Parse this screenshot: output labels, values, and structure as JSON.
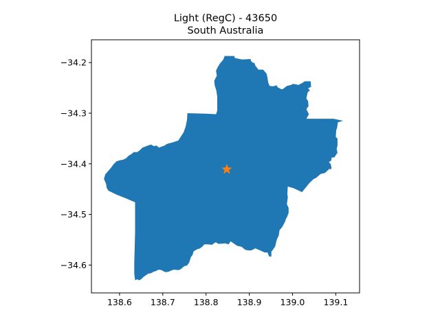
{
  "title": {
    "line1": "Light (RegC) - 43650",
    "line2": "South Australia"
  },
  "colors": {
    "region_fill": "#1f77b4",
    "marker": "#ff7f0e",
    "axis": "#000000",
    "background": "#ffffff"
  },
  "chart_data": {
    "type": "map",
    "title": "Light (RegC) - 43650\nSouth Australia",
    "xlabel": "",
    "ylabel": "",
    "xlim": [
      138.535,
      139.155
    ],
    "ylim": [
      -34.655,
      -34.155
    ],
    "grid": false,
    "x_ticks": [
      138.6,
      138.7,
      138.8,
      138.9,
      139.0,
      139.1
    ],
    "x_tick_labels": [
      "138.6",
      "138.7",
      "138.8",
      "138.9",
      "139.0",
      "139.1"
    ],
    "y_ticks": [
      -34.2,
      -34.3,
      -34.4,
      -34.5,
      -34.6
    ],
    "y_tick_labels": [
      "−34.2",
      "−34.3",
      "−34.4",
      "−34.5",
      "−34.6"
    ],
    "region": {
      "name": "Light (RegC)",
      "polygon": [
        [
          138.843,
          -34.187
        ],
        [
          138.865,
          -34.187
        ],
        [
          138.867,
          -34.191
        ],
        [
          138.884,
          -34.194
        ],
        [
          138.903,
          -34.193
        ],
        [
          138.904,
          -34.197
        ],
        [
          138.908,
          -34.2
        ],
        [
          138.912,
          -34.201
        ],
        [
          138.914,
          -34.206
        ],
        [
          138.921,
          -34.214
        ],
        [
          138.932,
          -34.214
        ],
        [
          138.937,
          -34.219
        ],
        [
          138.94,
          -34.222
        ],
        [
          138.942,
          -34.23
        ],
        [
          138.944,
          -34.24
        ],
        [
          138.947,
          -34.246
        ],
        [
          138.955,
          -34.247
        ],
        [
          138.963,
          -34.245
        ],
        [
          138.966,
          -34.249
        ],
        [
          138.975,
          -34.253
        ],
        [
          138.978,
          -34.252
        ],
        [
          138.987,
          -34.246
        ],
        [
          138.997,
          -34.244
        ],
        [
          139.001,
          -34.242
        ],
        [
          139.014,
          -34.244
        ],
        [
          139.023,
          -34.24
        ],
        [
          139.028,
          -34.237
        ],
        [
          139.042,
          -34.237
        ],
        [
          139.043,
          -34.248
        ],
        [
          139.036,
          -34.251
        ],
        [
          139.04,
          -34.255
        ],
        [
          139.035,
          -34.259
        ],
        [
          139.032,
          -34.271
        ],
        [
          139.036,
          -34.276
        ],
        [
          139.037,
          -34.286
        ],
        [
          139.032,
          -34.292
        ],
        [
          139.038,
          -34.302
        ],
        [
          139.032,
          -34.311
        ],
        [
          139.095,
          -34.311
        ],
        [
          139.117,
          -34.315
        ],
        [
          139.105,
          -34.318
        ],
        [
          139.103,
          -34.329
        ],
        [
          139.101,
          -34.334
        ],
        [
          139.1,
          -34.347
        ],
        [
          139.104,
          -34.35
        ],
        [
          139.104,
          -34.364
        ],
        [
          139.102,
          -34.371
        ],
        [
          139.104,
          -34.378
        ],
        [
          139.097,
          -34.387
        ],
        [
          139.09,
          -34.388
        ],
        [
          139.09,
          -34.393
        ],
        [
          139.084,
          -34.397
        ],
        [
          139.088,
          -34.4
        ],
        [
          139.09,
          -34.407
        ],
        [
          139.089,
          -34.411
        ],
        [
          139.085,
          -34.41
        ],
        [
          139.075,
          -34.418
        ],
        [
          139.065,
          -34.42
        ],
        [
          139.054,
          -34.428
        ],
        [
          139.049,
          -34.43
        ],
        [
          139.039,
          -34.438
        ],
        [
          139.022,
          -34.456
        ],
        [
          139.002,
          -34.448
        ],
        [
          138.989,
          -34.445
        ],
        [
          138.988,
          -34.459
        ],
        [
          138.989,
          -34.466
        ],
        [
          138.987,
          -34.48
        ],
        [
          138.991,
          -34.487
        ],
        [
          138.991,
          -34.497
        ],
        [
          138.987,
          -34.506
        ],
        [
          138.985,
          -34.508
        ],
        [
          138.983,
          -34.514
        ],
        [
          138.981,
          -34.517
        ],
        [
          138.976,
          -34.525
        ],
        [
          138.97,
          -34.531
        ],
        [
          138.968,
          -34.542
        ],
        [
          138.965,
          -34.547
        ],
        [
          138.963,
          -34.552
        ],
        [
          138.96,
          -34.563
        ],
        [
          138.956,
          -34.568
        ],
        [
          138.953,
          -34.572
        ],
        [
          138.951,
          -34.573
        ],
        [
          138.951,
          -34.583
        ],
        [
          138.946,
          -34.583
        ],
        [
          138.942,
          -34.575
        ],
        [
          138.935,
          -34.575
        ],
        [
          138.925,
          -34.571
        ],
        [
          138.914,
          -34.567
        ],
        [
          138.905,
          -34.571
        ],
        [
          138.898,
          -34.571
        ],
        [
          138.891,
          -34.57
        ],
        [
          138.882,
          -34.564
        ],
        [
          138.872,
          -34.562
        ],
        [
          138.865,
          -34.558
        ],
        [
          138.857,
          -34.553
        ],
        [
          138.852,
          -34.559
        ],
        [
          138.845,
          -34.557
        ],
        [
          138.834,
          -34.558
        ],
        [
          138.828,
          -34.558
        ],
        [
          138.823,
          -34.555
        ],
        [
          138.82,
          -34.556
        ],
        [
          138.814,
          -34.56
        ],
        [
          138.804,
          -34.559
        ],
        [
          138.796,
          -34.559
        ],
        [
          138.792,
          -34.563
        ],
        [
          138.786,
          -34.567
        ],
        [
          138.779,
          -34.569
        ],
        [
          138.771,
          -34.573
        ],
        [
          138.769,
          -34.58
        ],
        [
          138.765,
          -34.584
        ],
        [
          138.761,
          -34.595
        ],
        [
          138.756,
          -34.601
        ],
        [
          138.75,
          -34.602
        ],
        [
          138.742,
          -34.608
        ],
        [
          138.737,
          -34.61
        ],
        [
          138.726,
          -34.609
        ],
        [
          138.719,
          -34.611
        ],
        [
          138.714,
          -34.613
        ],
        [
          138.707,
          -34.614
        ],
        [
          138.703,
          -34.613
        ],
        [
          138.697,
          -34.61
        ],
        [
          138.69,
          -34.609
        ],
        [
          138.684,
          -34.612
        ],
        [
          138.679,
          -34.613
        ],
        [
          138.673,
          -34.616
        ],
        [
          138.666,
          -34.617
        ],
        [
          138.661,
          -34.62
        ],
        [
          138.656,
          -34.623
        ],
        [
          138.65,
          -34.628
        ],
        [
          138.645,
          -34.63
        ],
        [
          138.641,
          -34.628
        ],
        [
          138.636,
          -34.63
        ],
        [
          138.634,
          -34.617
        ],
        [
          138.634,
          -34.594
        ],
        [
          138.635,
          -34.566
        ],
        [
          138.636,
          -34.535
        ],
        [
          138.636,
          -34.476
        ],
        [
          138.614,
          -34.468
        ],
        [
          138.593,
          -34.461
        ],
        [
          138.574,
          -34.453
        ],
        [
          138.57,
          -34.447
        ],
        [
          138.569,
          -34.44
        ],
        [
          138.564,
          -34.43
        ],
        [
          138.567,
          -34.421
        ],
        [
          138.573,
          -34.415
        ],
        [
          138.58,
          -34.408
        ],
        [
          138.586,
          -34.401
        ],
        [
          138.593,
          -34.395
        ],
        [
          138.601,
          -34.393
        ],
        [
          138.608,
          -34.392
        ],
        [
          138.615,
          -34.389
        ],
        [
          138.621,
          -34.384
        ],
        [
          138.627,
          -34.381
        ],
        [
          138.633,
          -34.377
        ],
        [
          138.641,
          -34.377
        ],
        [
          138.647,
          -34.373
        ],
        [
          138.653,
          -34.368
        ],
        [
          138.659,
          -34.366
        ],
        [
          138.665,
          -34.364
        ],
        [
          138.673,
          -34.362
        ],
        [
          138.679,
          -34.365
        ],
        [
          138.686,
          -34.364
        ],
        [
          138.691,
          -34.368
        ],
        [
          138.697,
          -34.366
        ],
        [
          138.704,
          -34.364
        ],
        [
          138.709,
          -34.361
        ],
        [
          138.716,
          -34.359
        ],
        [
          138.722,
          -34.358
        ],
        [
          138.729,
          -34.356
        ],
        [
          138.736,
          -34.354
        ],
        [
          138.741,
          -34.347
        ],
        [
          138.748,
          -34.338
        ],
        [
          138.753,
          -34.326
        ],
        [
          138.756,
          -34.313
        ],
        [
          138.757,
          -34.3
        ],
        [
          138.8,
          -34.301
        ],
        [
          138.823,
          -34.302
        ],
        [
          138.826,
          -34.295
        ],
        [
          138.826,
          -34.282
        ],
        [
          138.826,
          -34.268
        ],
        [
          138.824,
          -34.256
        ],
        [
          138.82,
          -34.245
        ],
        [
          138.819,
          -34.236
        ],
        [
          138.825,
          -34.226
        ],
        [
          138.823,
          -34.216
        ],
        [
          138.827,
          -34.209
        ],
        [
          138.832,
          -34.202
        ],
        [
          138.84,
          -34.194
        ],
        [
          138.843,
          -34.187
        ]
      ]
    },
    "marker": {
      "x": 138.848,
      "y": -34.411,
      "shape": "star"
    }
  }
}
